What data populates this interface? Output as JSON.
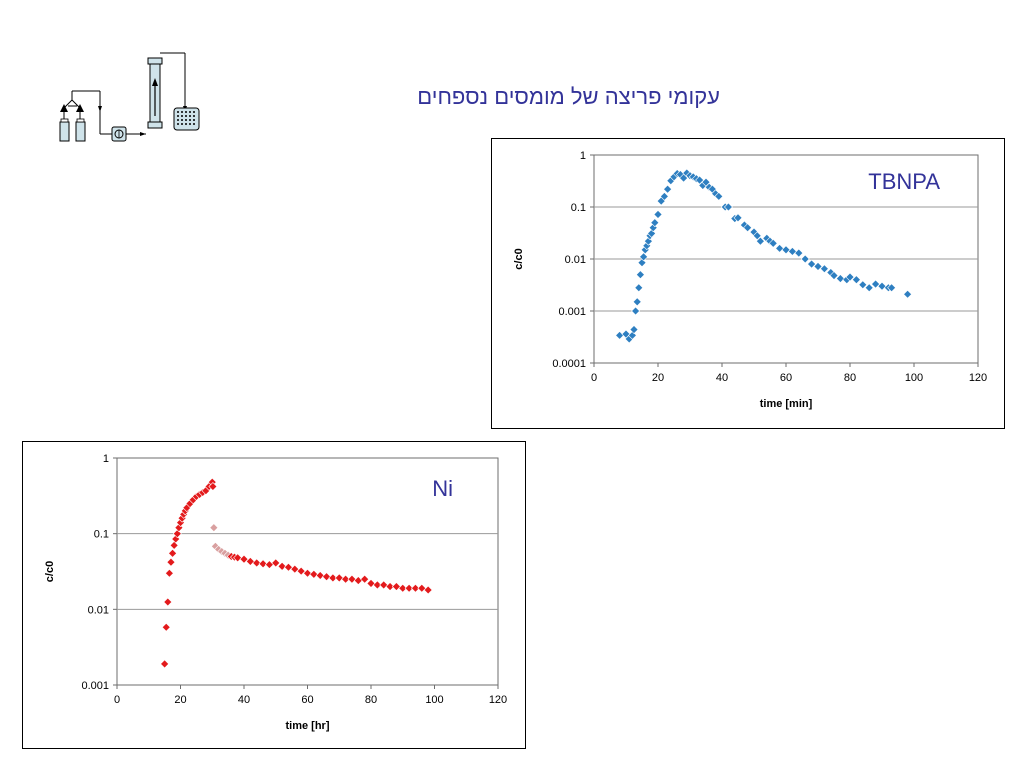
{
  "slide": {
    "title": "עקומי פריצה של מומסים נספחים"
  },
  "colors": {
    "title": "#333399",
    "tbnpa_marker": "#2e7fc1",
    "ni_marker": "#e31a1c",
    "ni_marker_faded": "#d9a0a0",
    "grid": "#9a9a9a"
  },
  "icons": {
    "apparatus": "column-apparatus-icon"
  },
  "chart_data": [
    {
      "id": "tbnpa",
      "type": "scatter",
      "annotation": "TBNPA",
      "xlabel": "time [min]",
      "ylabel": "c/c0",
      "xlim": [
        0,
        120
      ],
      "ylim": [
        0.0001,
        1
      ],
      "yscale": "log",
      "x_ticks": [
        "0",
        "20",
        "40",
        "60",
        "80",
        "100",
        "120"
      ],
      "y_ticks": [
        "0.0001",
        "0.001",
        "0.01",
        "0.1",
        "1"
      ],
      "grid": "horizontal",
      "marker": "diamond",
      "series": [
        {
          "x": [
            8,
            10,
            11,
            12,
            12.5,
            13,
            13.5,
            14,
            14.5,
            15,
            15.5,
            16,
            16.5,
            17,
            17.5,
            18,
            18.5,
            19,
            20,
            21,
            22,
            23,
            24,
            25,
            26,
            27,
            28,
            29,
            30,
            31,
            32,
            33,
            34,
            35,
            36,
            37,
            38,
            39,
            41,
            42,
            44,
            45,
            47,
            48,
            50,
            51,
            52,
            54,
            55,
            56,
            58,
            60,
            62,
            64,
            66,
            68,
            70,
            72,
            74,
            75,
            77,
            79,
            80,
            82,
            84,
            86,
            88,
            90,
            92,
            93,
            98
          ],
          "y": [
            0.00034,
            0.00036,
            0.00029,
            0.00034,
            0.00044,
            0.001,
            0.0015,
            0.0028,
            0.005,
            0.0085,
            0.011,
            0.015,
            0.018,
            0.022,
            0.028,
            0.031,
            0.04,
            0.05,
            0.072,
            0.13,
            0.16,
            0.22,
            0.32,
            0.38,
            0.44,
            0.42,
            0.36,
            0.45,
            0.4,
            0.38,
            0.35,
            0.33,
            0.26,
            0.3,
            0.24,
            0.22,
            0.18,
            0.16,
            0.1,
            0.1,
            0.06,
            0.062,
            0.045,
            0.04,
            0.033,
            0.028,
            0.022,
            0.025,
            0.022,
            0.02,
            0.016,
            0.015,
            0.014,
            0.013,
            0.01,
            0.008,
            0.0072,
            0.0065,
            0.0055,
            0.0048,
            0.0042,
            0.004,
            0.0045,
            0.004,
            0.0032,
            0.0028,
            0.0033,
            0.003,
            0.0028,
            0.0028,
            0.0021
          ]
        }
      ]
    },
    {
      "id": "ni",
      "type": "scatter",
      "annotation": "Ni",
      "xlabel": "time [hr]",
      "ylabel": "c/c0",
      "xlim": [
        0,
        120
      ],
      "ylim": [
        0.001,
        1
      ],
      "yscale": "log",
      "x_ticks": [
        "0",
        "20",
        "40",
        "60",
        "80",
        "100",
        "120"
      ],
      "y_ticks": [
        "0.001",
        "0.01",
        "0.1",
        "1"
      ],
      "grid": "horizontal",
      "marker": "diamond",
      "series": [
        {
          "x": [
            15,
            15.5,
            16,
            16.5,
            17,
            17.5,
            18,
            18.5,
            19,
            19.5,
            20,
            20.5,
            21,
            21.5,
            22,
            23,
            24,
            25,
            26,
            27,
            28,
            29,
            30,
            30.2,
            30.5,
            31,
            32,
            33,
            34,
            35,
            36,
            37,
            38,
            40,
            42,
            44,
            46,
            48,
            50,
            52,
            54,
            56,
            58,
            60,
            62,
            64,
            66,
            68,
            70,
            72,
            74,
            76,
            78,
            80,
            82,
            84,
            86,
            88,
            90,
            92,
            94,
            96,
            98
          ],
          "y": [
            0.0019,
            0.0058,
            0.0125,
            0.03,
            0.042,
            0.055,
            0.07,
            0.085,
            0.1,
            0.12,
            0.14,
            0.16,
            0.18,
            0.2,
            0.22,
            0.25,
            0.28,
            0.31,
            0.33,
            0.35,
            0.37,
            0.42,
            0.48,
            0.42,
            0.12,
            0.068,
            0.062,
            0.058,
            0.055,
            0.052,
            0.05,
            0.049,
            0.048,
            0.046,
            0.043,
            0.041,
            0.04,
            0.039,
            0.041,
            0.037,
            0.036,
            0.034,
            0.032,
            0.03,
            0.029,
            0.028,
            0.027,
            0.026,
            0.026,
            0.025,
            0.025,
            0.024,
            0.025,
            0.022,
            0.021,
            0.021,
            0.02,
            0.02,
            0.019,
            0.019,
            0.019,
            0.019,
            0.018
          ]
        }
      ]
    }
  ]
}
